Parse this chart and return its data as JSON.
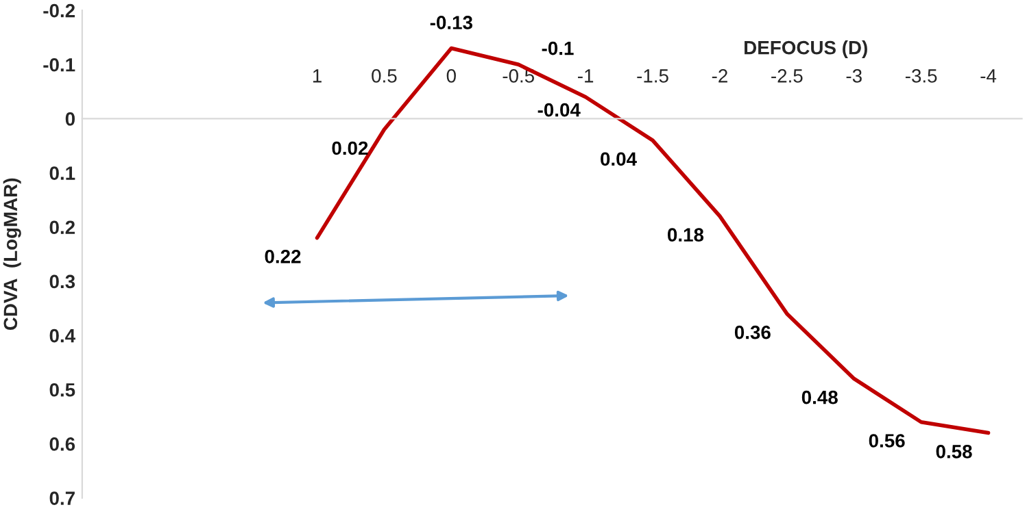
{
  "chart_data": {
    "type": "line",
    "xlabel": "DEFOCUS (D)",
    "ylabel": "CDVA  (LogMAR)",
    "categories": [
      null,
      null,
      null,
      "1",
      "0.5",
      "0",
      "-0.5",
      "-1",
      "-1.5",
      "-2",
      "-2.5",
      "-3",
      "-3.5",
      "-4"
    ],
    "series": [
      {
        "color": "#c00000",
        "values": [
          null,
          null,
          null,
          0.22,
          0.02,
          -0.13,
          -0.1,
          -0.04,
          0.04,
          0.18,
          0.36,
          0.48,
          0.56,
          0.58
        ]
      }
    ],
    "ylim": [
      0.7,
      -0.2
    ],
    "yticks": [
      -0.2,
      -0.1,
      0,
      0.1,
      0.2,
      0.3,
      0.4,
      0.5,
      0.6,
      0.7
    ],
    "data_labels": true,
    "grid": false,
    "legend": false,
    "marker": "none",
    "line_style": "solid"
  }
}
